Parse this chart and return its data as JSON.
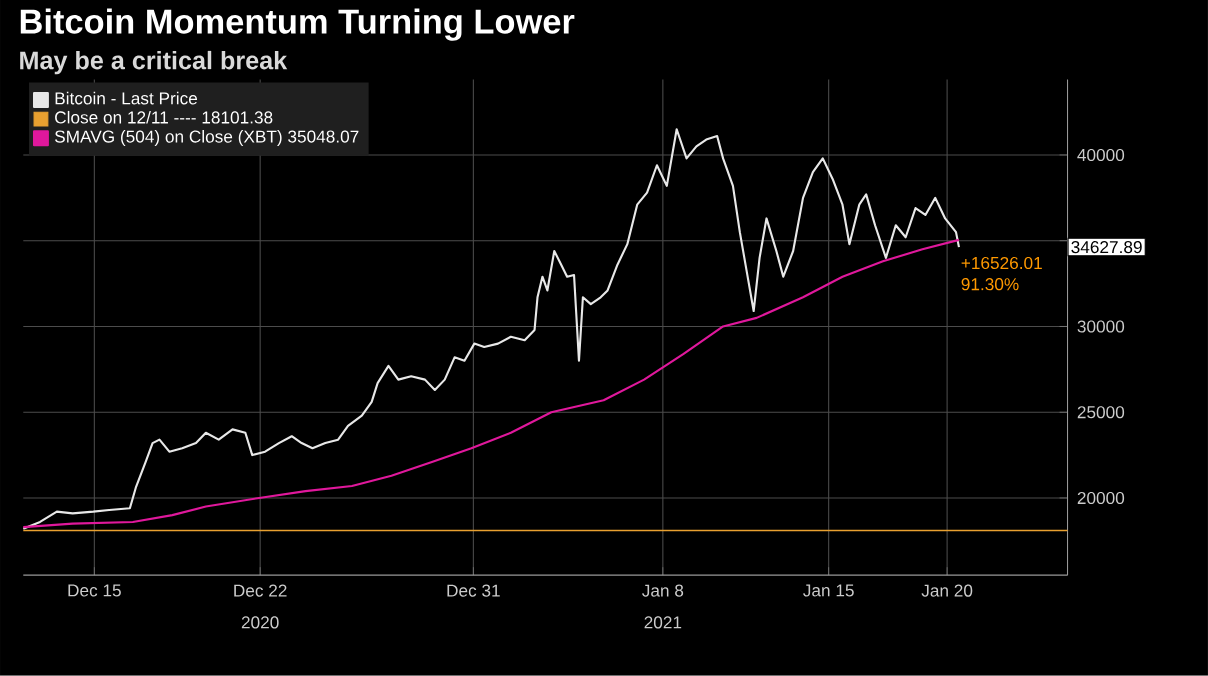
{
  "chart_data": {
    "type": "line",
    "title": "Bitcoin Momentum Turning Lower",
    "subtitle": "May be a critical break",
    "xlim": [
      "2020-12-12T00:00",
      "2021-01-25T02:00"
    ],
    "ylim": [
      15500,
      44400
    ],
    "xticks": [
      {
        "value": "2020-12-15",
        "label": "Dec 15"
      },
      {
        "value": "2020-12-22",
        "label": "Dec 22"
      },
      {
        "value": "2020-12-31",
        "label": "Dec 31"
      },
      {
        "value": "2021-01-08",
        "label": "Jan 8"
      },
      {
        "value": "2021-01-15",
        "label": "Jan 15"
      },
      {
        "value": "2021-01-20",
        "label": "Jan 20"
      }
    ],
    "x2lim": [
      "2020-12-12T00:00",
      "2021-01-25T02:00"
    ],
    "x2ticks": [
      {
        "value": "2020-12-22",
        "label": "2020"
      },
      {
        "value": "2021-01-08",
        "label": "2021"
      }
    ],
    "yticks": [
      20000,
      25000,
      30000,
      {
        "value": 35000,
        "label": null
      },
      40000
    ],
    "grid": true,
    "legend": "top left",
    "marker": "none",
    "line_style": "solid",
    "series": [
      {
        "name": "Bitcoin - Last Price",
        "color": "#e8e8e8",
        "x": [
          "2020-12-12T00:00",
          "2020-12-12T17:00",
          "2020-12-13T10:00",
          "2020-12-14T02:00",
          "2020-12-14T23:00",
          "2020-12-15T15:00",
          "2020-12-16T12:00",
          "2020-12-16T18:00",
          "2020-12-17T04:00",
          "2020-12-17T11:00",
          "2020-12-17T18:00",
          "2020-12-18T04:00",
          "2020-12-18T17:00",
          "2020-12-19T07:00",
          "2020-12-19T17:00",
          "2020-12-20T06:00",
          "2020-12-20T20:00",
          "2020-12-21T09:00",
          "2020-12-21T16:00",
          "2020-12-22T05:00",
          "2020-12-22T19:00",
          "2020-12-23T08:00",
          "2020-12-23T18:00",
          "2020-12-24T05:00",
          "2020-12-24T18:00",
          "2020-12-25T07:00",
          "2020-12-25T17:00",
          "2020-12-26T07:00",
          "2020-12-26T17:00",
          "2020-12-26T23:00",
          "2020-12-27T10:00",
          "2020-12-27T20:00",
          "2020-12-28T09:00",
          "2020-12-28T23:00",
          "2020-12-29T09:00",
          "2020-12-29T19:00",
          "2020-12-30T05:00",
          "2020-12-30T15:00",
          "2020-12-31T01:00",
          "2020-12-31T11:00",
          "2021-01-01T01:00",
          "2021-01-01T14:00",
          "2021-01-02T04:00",
          "2021-01-02T14:00",
          "2021-01-02T17:00",
          "2021-01-02T22:00",
          "2021-01-03T03:00",
          "2021-01-03T10:00",
          "2021-01-03T17:00",
          "2021-01-03T23:00",
          "2021-01-04T06:00",
          "2021-01-04T11:00",
          "2021-01-04T15:00",
          "2021-01-04T23:00",
          "2021-01-05T09:00",
          "2021-01-05T16:00",
          "2021-01-06T02:00",
          "2021-01-06T12:00",
          "2021-01-06T22:00",
          "2021-01-07T08:00",
          "2021-01-07T18:00",
          "2021-01-08T04:00",
          "2021-01-08T14:00",
          "2021-01-09T00:00",
          "2021-01-09T10:00",
          "2021-01-09T20:00",
          "2021-01-10T07:00",
          "2021-01-10T13:00",
          "2021-01-10T23:00",
          "2021-01-11T06:00",
          "2021-01-11T13:00",
          "2021-01-11T20:00",
          "2021-01-12T02:00",
          "2021-01-12T09:00",
          "2021-01-12T19:00",
          "2021-01-13T02:00",
          "2021-01-13T12:00",
          "2021-01-13T22:00",
          "2021-01-14T08:00",
          "2021-01-14T18:00",
          "2021-01-15T04:00",
          "2021-01-15T14:00",
          "2021-01-15T21:00",
          "2021-01-16T07:00",
          "2021-01-16T14:00",
          "2021-01-16T23:00",
          "2021-01-17T10:00",
          "2021-01-17T20:00",
          "2021-01-18T06:00",
          "2021-01-18T16:00",
          "2021-01-19T02:00",
          "2021-01-19T12:00",
          "2021-01-19T22:00",
          "2021-01-20T09:00",
          "2021-01-20T12:00"
        ],
        "values": [
          18200,
          18600,
          19200,
          19100,
          19200,
          19300,
          19400,
          20600,
          22100,
          23200,
          23400,
          22700,
          22900,
          23200,
          23800,
          23400,
          24000,
          23800,
          22500,
          22700,
          23200,
          23600,
          23200,
          22900,
          23200,
          23400,
          24200,
          24800,
          25600,
          26700,
          27700,
          26900,
          27100,
          26900,
          26300,
          26900,
          28200,
          28000,
          29000,
          28800,
          29000,
          29400,
          29200,
          29800,
          31700,
          32900,
          32100,
          34400,
          33600,
          32900,
          33000,
          28000,
          31700,
          31300,
          31700,
          32100,
          33600,
          34800,
          37100,
          37800,
          39400,
          38200,
          41500,
          39800,
          40500,
          40900,
          41100,
          39800,
          38200,
          35500,
          33200,
          30900,
          34000,
          36300,
          34400,
          32900,
          34400,
          37500,
          39000,
          39800,
          38600,
          37100,
          34800,
          37100,
          37700,
          35900,
          34000,
          35900,
          35200,
          36900,
          36500,
          37500,
          36300,
          35500,
          34627.89
        ],
        "value_labels": [
          null,
          null,
          null,
          null,
          null,
          null,
          null,
          null,
          null,
          null,
          null,
          null,
          null,
          null,
          null,
          null,
          null,
          null,
          null,
          null,
          null,
          null,
          null,
          null,
          null,
          null,
          null,
          null,
          null,
          null,
          null,
          null,
          null,
          null,
          null,
          null,
          null,
          null,
          null,
          null,
          null,
          null,
          null,
          null,
          null,
          null,
          null,
          null,
          null,
          null,
          null,
          null,
          null,
          null,
          null,
          null,
          null,
          null,
          null,
          null,
          null,
          null,
          null,
          null,
          null,
          null,
          null,
          null,
          null,
          null,
          null,
          null,
          null,
          null,
          null,
          null,
          null,
          null,
          null,
          null,
          null,
          null,
          null,
          null,
          null,
          null,
          null,
          null,
          null,
          null,
          null,
          null,
          null,
          null,
          null
        ]
      },
      {
        "name": "SMAVG (504)  on Close (XBT)  35048.07",
        "color": "#e0189c",
        "x": [
          "2020-12-12T00:00",
          "2020-12-14T02:00",
          "2020-12-16T15:00",
          "2020-12-18T07:00",
          "2020-12-19T17:00",
          "2020-12-21T23:00",
          "2020-12-23T22:00",
          "2020-12-25T21:00",
          "2020-12-27T13:00",
          "2020-12-29T06:00",
          "2020-12-30T22:00",
          "2021-01-01T14:00",
          "2021-01-03T07:00",
          "2021-01-05T12:00",
          "2021-01-07T05:00",
          "2021-01-08T21:00",
          "2021-01-10T13:00",
          "2021-01-11T23:00",
          "2021-01-13T22:00",
          "2021-01-15T14:00",
          "2021-01-17T07:00",
          "2021-01-18T23:00",
          "2021-01-20T12:00"
        ],
        "values": [
          18300,
          18500,
          18600,
          19000,
          19500,
          20000,
          20400,
          20700,
          21300,
          22100,
          22900,
          23800,
          25000,
          25700,
          26900,
          28400,
          30000,
          30500,
          31700,
          32900,
          33800,
          34500,
          35048.07
        ]
      }
    ],
    "ref_lines": [
      {
        "axis": "y",
        "value": 18101.38,
        "label": "Close on 12/11 ----  18101.38",
        "color": "#e8a030"
      }
    ],
    "annotations": [
      "34627.89",
      "+16526.01",
      "91.30%"
    ]
  }
}
